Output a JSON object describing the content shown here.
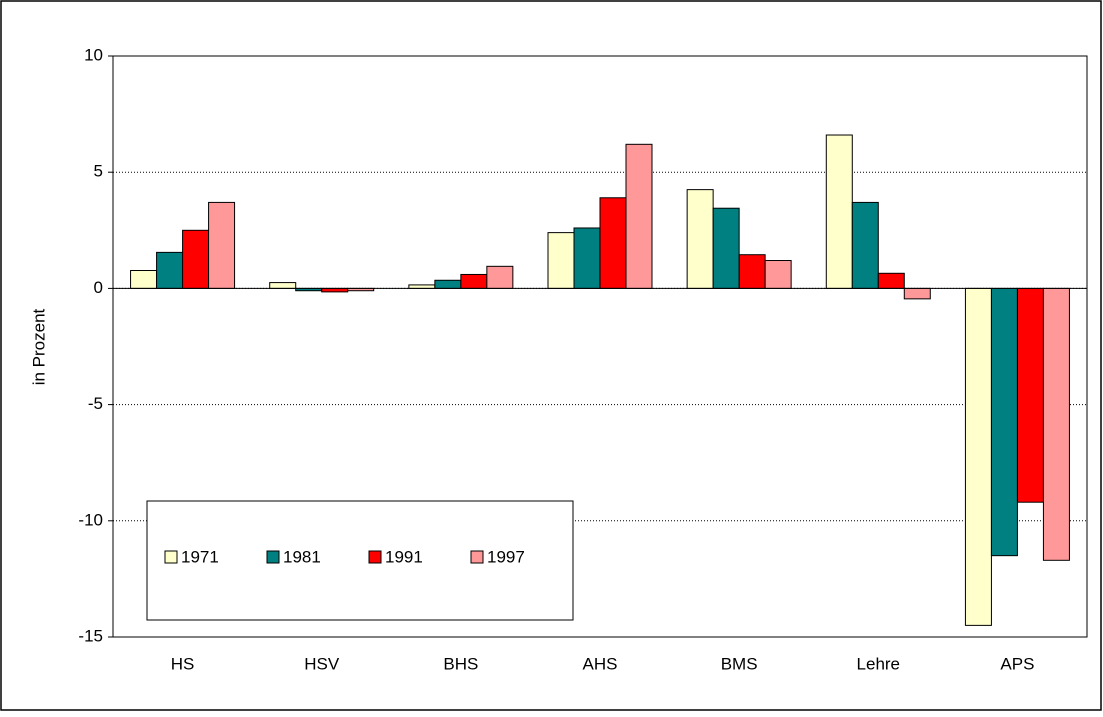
{
  "chart_data": {
    "type": "bar",
    "y_label": "in Prozent",
    "categories": [
      "HS",
      "HSV",
      "BHS",
      "AHS",
      "BMS",
      "Lehre",
      "APS"
    ],
    "series": [
      {
        "name": "1971",
        "color": "#ffffcc",
        "values": [
          0.77,
          0.25,
          0.15,
          2.4,
          4.25,
          6.6,
          -14.5
        ]
      },
      {
        "name": "1981",
        "color": "#008080",
        "values": [
          1.55,
          -0.1,
          0.35,
          2.6,
          3.45,
          3.7,
          -11.5
        ]
      },
      {
        "name": "1991",
        "color": "#ff0000",
        "values": [
          2.5,
          -0.15,
          0.6,
          3.9,
          1.45,
          0.65,
          -9.2
        ]
      },
      {
        "name": "1997",
        "color": "#ff9999",
        "values": [
          3.7,
          -0.1,
          0.95,
          6.2,
          1.2,
          -0.45,
          -11.7
        ]
      }
    ],
    "ylim": [
      -15,
      10
    ],
    "yticks": [
      -15,
      -10,
      -5,
      0,
      5,
      10
    ],
    "grid": true
  }
}
